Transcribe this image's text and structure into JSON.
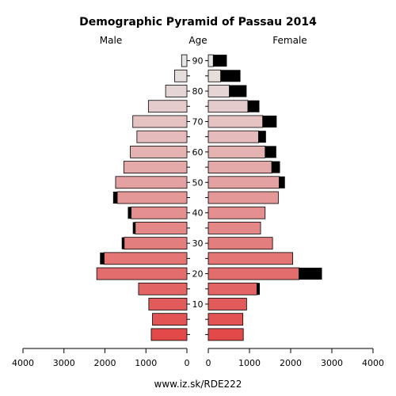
{
  "chart_data": {
    "type": "bar",
    "subtype": "population-pyramid",
    "title": "Demographic Pyramid of Passau 2014",
    "left_label": "Male",
    "center_label": "Age",
    "right_label": "Female",
    "footer": "www.iz.sk/RDE222",
    "x_tick_labels": [
      "4000",
      "3000",
      "2000",
      "1000",
      "0",
      "0",
      "1000",
      "2000",
      "3000",
      "4000"
    ],
    "age_tick_labels": [
      "10",
      "20",
      "30",
      "40",
      "50",
      "60",
      "70",
      "80",
      "90"
    ],
    "xlim": [
      0,
      4000
    ],
    "age_groups": [
      "0-4",
      "5-9",
      "10-14",
      "15-19",
      "20-24",
      "25-29",
      "30-34",
      "35-39",
      "40-44",
      "45-49",
      "50-54",
      "55-59",
      "60-64",
      "65-69",
      "70-74",
      "75-79",
      "80-84",
      "85-89",
      "90-94"
    ],
    "male": [
      870,
      840,
      930,
      1180,
      2200,
      2020,
      1530,
      1260,
      1360,
      1700,
      1740,
      1540,
      1380,
      1220,
      1320,
      940,
      520,
      300,
      130
    ],
    "male_excess": [
      0,
      0,
      0,
      0,
      0,
      100,
      60,
      60,
      80,
      100,
      0,
      0,
      0,
      0,
      0,
      0,
      0,
      0,
      0
    ],
    "female": [
      850,
      840,
      930,
      1180,
      2200,
      2050,
      1560,
      1270,
      1380,
      1700,
      1720,
      1540,
      1380,
      1220,
      1320,
      960,
      510,
      300,
      120
    ],
    "female_excess": [
      0,
      0,
      0,
      70,
      560,
      0,
      0,
      0,
      0,
      0,
      140,
      200,
      270,
      180,
      340,
      280,
      420,
      480,
      330
    ],
    "colors": {
      "young": "#e24a4a",
      "old": "#e6e6e6",
      "excess": "#000000",
      "axis": "#000000"
    }
  }
}
